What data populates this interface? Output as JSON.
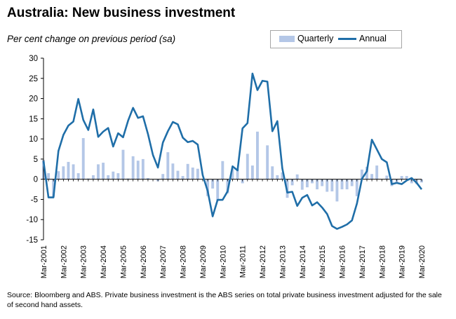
{
  "chart_data": {
    "type": "bar+line",
    "title": "Australia: New business investment",
    "subtitle": "Per cent change on previous period (sa)",
    "ylim": [
      -15,
      30
    ],
    "y_ticks": [
      -15,
      -10,
      -5,
      0,
      5,
      10,
      15,
      20,
      25,
      30
    ],
    "x_tick_labels": [
      "Mar-2001",
      "Mar-2002",
      "Mar-2003",
      "Mar-2004",
      "Mar-2005",
      "Mar-2006",
      "Mar-2007",
      "Mar-2008",
      "Mar-2009",
      "Mar-2010",
      "Mar-2011",
      "Mar-2012",
      "Mar-2013",
      "Mar-2014",
      "Mar-2015",
      "Mar-2016",
      "Mar-2017",
      "Mar-2018",
      "Mar-2019",
      "Mar-2020"
    ],
    "x_start": "Mar-2001",
    "frequency": "quarterly",
    "series": [
      {
        "name": "Quarterly",
        "type": "bar",
        "color": "#b4c7e7",
        "values": [
          4.8,
          1.5,
          -4.3,
          2.0,
          3.2,
          4.3,
          3.7,
          1.5,
          10.2,
          0.2,
          1.0,
          3.7,
          4.1,
          1.0,
          1.9,
          1.5,
          7.3,
          0.2,
          5.7,
          4.6,
          5.0,
          0.3,
          0.0,
          -0.5,
          1.3,
          6.7,
          3.9,
          2.1,
          0.8,
          3.8,
          2.9,
          2.6,
          0.0,
          -4.2,
          -2.3,
          -5.3,
          4.5,
          -3.5,
          2.6,
          2.5,
          -1.0,
          6.3,
          3.4,
          11.8,
          0.0,
          8.4,
          3.2,
          1.0,
          1.7,
          -4.6,
          -1.5,
          1.2,
          -2.6,
          -2.0,
          -1.0,
          -2.5,
          -1.7,
          -3.1,
          -3.0,
          -5.5,
          -2.5,
          -2.5,
          -1.7,
          -4.2,
          2.4,
          3.1,
          1.3,
          3.4,
          0.0,
          0.9,
          -1.7,
          -1.0,
          0.8,
          0.8,
          -1.0,
          -1.2,
          -0.8
        ],
        "bar_labels": []
      },
      {
        "name": "Annual",
        "type": "line",
        "color": "#1f6ea8",
        "values": [
          4.5,
          -4.5,
          -4.5,
          7.0,
          11.0,
          13.3,
          14.3,
          19.9,
          14.7,
          12.2,
          17.3,
          10.5,
          11.8,
          12.7,
          8.1,
          11.4,
          10.4,
          14.5,
          17.7,
          15.2,
          15.6,
          11.2,
          6.0,
          2.9,
          9.1,
          11.9,
          14.2,
          13.6,
          10.3,
          9.2,
          9.5,
          8.6,
          1.0,
          -2.9,
          -9.2,
          -5.1,
          -5.1,
          -3.0,
          3.2,
          2.2,
          12.6,
          13.9,
          26.2,
          22.1,
          24.4,
          24.2,
          11.9,
          14.4,
          2.7,
          -3.3,
          -3.1,
          -6.6,
          -4.6,
          -3.9,
          -6.5,
          -5.7,
          -7.0,
          -8.6,
          -11.6,
          -12.3,
          -11.8,
          -11.2,
          -10.2,
          -6.0,
          0.1,
          2.0,
          9.8,
          7.4,
          5.0,
          4.2,
          -1.2,
          -0.9,
          -1.2,
          -0.3,
          0.3,
          -0.9,
          -2.5
        ]
      }
    ],
    "legend_position": "top-right",
    "grid": false
  },
  "footer": {
    "source": "Source: Bloomberg and ABS.  Private business investment is the ABS series on total private business investment adjusted for the sale of second hand assets."
  }
}
